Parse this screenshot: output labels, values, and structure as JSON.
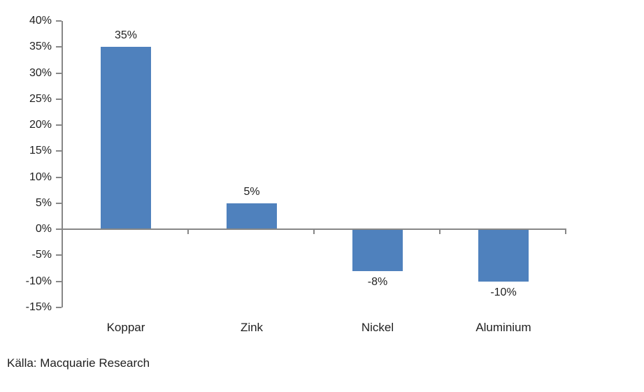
{
  "chart_data": {
    "type": "bar",
    "title": "",
    "xlabel": "",
    "ylabel": "",
    "categories": [
      "Koppar",
      "Zink",
      "Nickel",
      "Aluminium"
    ],
    "values": [
      35,
      5,
      -8,
      -10
    ],
    "data_labels": [
      "35%",
      "5%",
      "-8%",
      "-10%"
    ],
    "ylim": [
      -15,
      40
    ],
    "y_ticks": [
      {
        "v": 40,
        "label": "40%"
      },
      {
        "v": 35,
        "label": "35%"
      },
      {
        "v": 30,
        "label": "30%"
      },
      {
        "v": 25,
        "label": "25%"
      },
      {
        "v": 20,
        "label": "20%"
      },
      {
        "v": 15,
        "label": "15%"
      },
      {
        "v": 10,
        "label": "10%"
      },
      {
        "v": 5,
        "label": "5%"
      },
      {
        "v": 0,
        "label": "0%"
      },
      {
        "v": -5,
        "label": "-5%"
      },
      {
        "v": -10,
        "label": "-10%"
      },
      {
        "v": -15,
        "label": "-15%"
      }
    ],
    "grid": false,
    "legend": null,
    "bar_color": "#4f81bd",
    "axis_color": "#878787",
    "text_color": "#1f1f1f"
  },
  "source": {
    "label": "Källa: Macquarie Research"
  }
}
